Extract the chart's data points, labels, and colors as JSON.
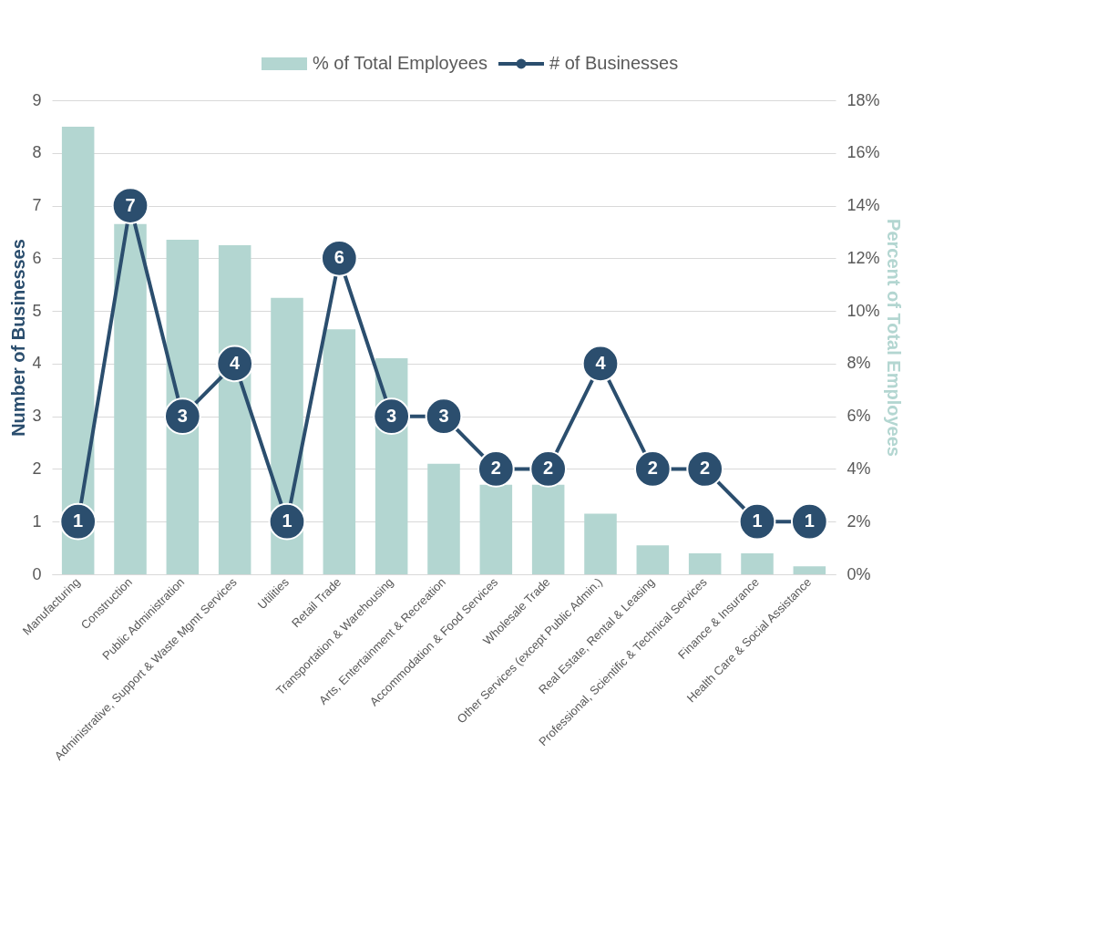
{
  "chart_data": {
    "type": "bar",
    "categories": [
      "Manufacturing",
      "Construction",
      "Public Administration",
      "Administrative, Support & Waste Mgmt Services",
      "Utilities",
      "Retail Trade",
      "Transportation & Warehousing",
      "Arts, Entertainment & Recreation",
      "Accommodation & Food Services",
      "Wholesale Trade",
      "Other Services (except Public Admin.)",
      "Real Estate, Rental & Leasing",
      "Professional, Scientific & Technical Services",
      "Finance & Insurance",
      "Health Care & Social Assistance"
    ],
    "series": [
      {
        "name": "% of Total Employees",
        "axis": "y2",
        "color": "#b3d6d1",
        "values": [
          17.0,
          13.3,
          12.7,
          12.5,
          10.5,
          9.3,
          8.2,
          4.2,
          3.4,
          3.4,
          2.3,
          1.1,
          0.8,
          0.8,
          0.3
        ]
      },
      {
        "name": "# of Businesses",
        "type": "line",
        "axis": "y",
        "color": "#2b4e6e",
        "marker": "circle",
        "values": [
          1,
          7,
          3,
          4,
          1,
          6,
          3,
          3,
          2,
          2,
          4,
          2,
          2,
          1,
          1
        ],
        "value_labels": [
          "1",
          "7",
          "3",
          "4",
          "1",
          "6",
          "3",
          "3",
          "2",
          "2",
          "4",
          "2",
          "2",
          "1",
          "1"
        ]
      }
    ],
    "ylabel": "Number of Businesses",
    "y2label": "Percent of Total Employees",
    "ylim": [
      0,
      9
    ],
    "yticks": [
      0,
      1,
      2,
      3,
      4,
      5,
      6,
      7,
      8,
      9
    ],
    "y2lim": [
      0,
      18
    ],
    "y2ticks": [
      {
        "value": 0,
        "label": "0%"
      },
      {
        "value": 2,
        "label": "2%"
      },
      {
        "value": 4,
        "label": "4%"
      },
      {
        "value": 6,
        "label": "6%"
      },
      {
        "value": 8,
        "label": "8%"
      },
      {
        "value": 10,
        "label": "10%"
      },
      {
        "value": 12,
        "label": "12%"
      },
      {
        "value": 14,
        "label": "14%"
      },
      {
        "value": 16,
        "label": "16%"
      },
      {
        "value": 18,
        "label": "18%"
      }
    ],
    "grid": "y",
    "legend": "top"
  }
}
